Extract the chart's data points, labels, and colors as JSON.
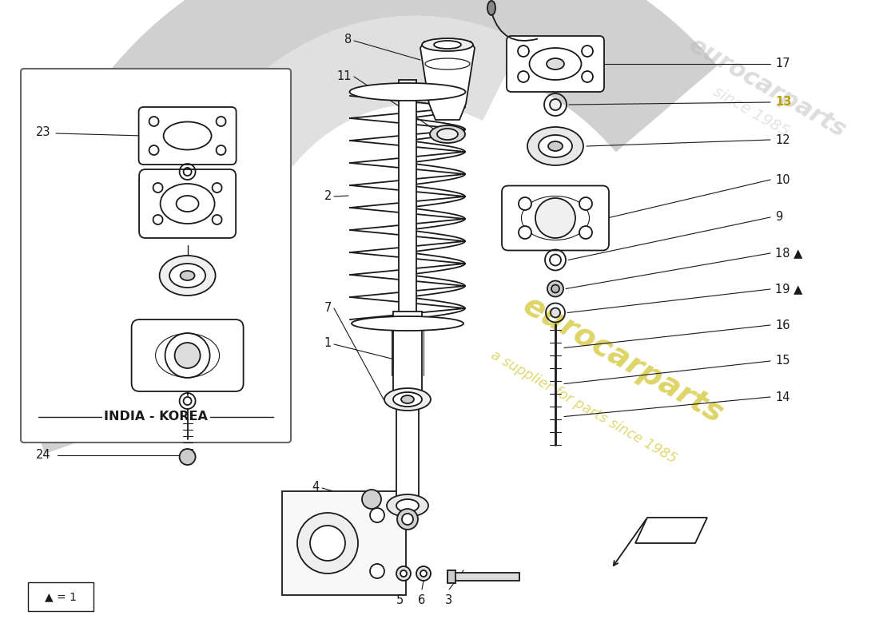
{
  "background_color": "#ffffff",
  "watermark_line1": "eurocarparts",
  "watermark_line2": "a supplier for parts since 1985",
  "watermark_color": "#c8b800",
  "india_korea_label": "INDIA - KOREA",
  "triangle_note": "▲ = 1",
  "line_color": "#1a1a1a",
  "label_fontsize": 10.5,
  "highlight_color": "#b8a000",
  "fig_width": 11.0,
  "fig_height": 8.0,
  "fig_dpi": 100
}
